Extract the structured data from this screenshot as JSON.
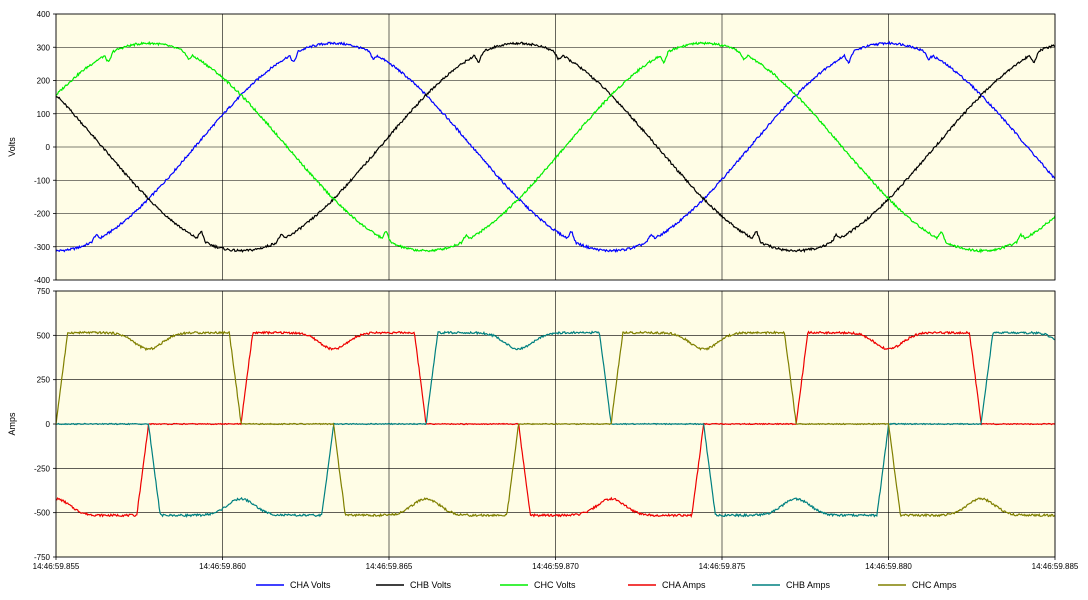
{
  "chart_data": [
    {
      "type": "line",
      "title": "",
      "ylabel": "Volts",
      "xlabel": "",
      "xlim": [
        0.855,
        0.885
      ],
      "ylim": [
        -400,
        400
      ],
      "yticks": [
        400,
        300,
        200,
        100,
        0,
        -100,
        -200,
        -300,
        -400
      ],
      "grid": true,
      "background": "#FFFDE6",
      "series": [
        {
          "name": "CHA Volts",
          "color": "#0000FF",
          "amplitude": 312,
          "phase_deg": -90,
          "period": 0.01667
        },
        {
          "name": "CHB Volts",
          "color": "#000000",
          "amplitude": 312,
          "phase_deg": 150,
          "period": 0.01667
        },
        {
          "name": "CHC Volts",
          "color": "#00EE00",
          "amplitude": 312,
          "phase_deg": 30,
          "period": 0.01667
        }
      ]
    },
    {
      "type": "line",
      "title": "",
      "ylabel": "Amps",
      "xlabel": "",
      "xlim": [
        0.855,
        0.885
      ],
      "ylim": [
        -750,
        750
      ],
      "yticks": [
        750,
        500,
        250,
        0,
        -250,
        -500,
        -750
      ],
      "grid": true,
      "background": "#FFFDE6",
      "series": [
        {
          "name": "CHA Amps",
          "color": "#EE0000",
          "peak": 515,
          "waveform": "six-pulse rectifier current"
        },
        {
          "name": "CHB Amps",
          "color": "#008080",
          "peak": 515,
          "waveform": "six-pulse rectifier current"
        },
        {
          "name": "CHC Amps",
          "color": "#808000",
          "peak": 515,
          "waveform": "six-pulse rectifier current"
        }
      ]
    }
  ],
  "x_axis": {
    "ticks": [
      {
        "t": 0.855,
        "label": "14:46:59.855"
      },
      {
        "t": 0.86,
        "label": "14:46:59.860"
      },
      {
        "t": 0.865,
        "label": "14:46:59.865"
      },
      {
        "t": 0.87,
        "label": "14:46:59.870"
      },
      {
        "t": 0.875,
        "label": "14:46:59.875"
      },
      {
        "t": 0.88,
        "label": "14:46:59.880"
      },
      {
        "t": 0.885,
        "label": "14:46:59.885"
      }
    ]
  },
  "legend": {
    "position": "bottom",
    "items": [
      {
        "label": "CHA Volts",
        "color": "#0000FF"
      },
      {
        "label": "CHB Volts",
        "color": "#000000"
      },
      {
        "label": "CHC Volts",
        "color": "#00EE00"
      },
      {
        "label": "CHA Amps",
        "color": "#EE0000"
      },
      {
        "label": "CHB Amps",
        "color": "#008080"
      },
      {
        "label": "CHC Amps",
        "color": "#808000"
      }
    ]
  }
}
